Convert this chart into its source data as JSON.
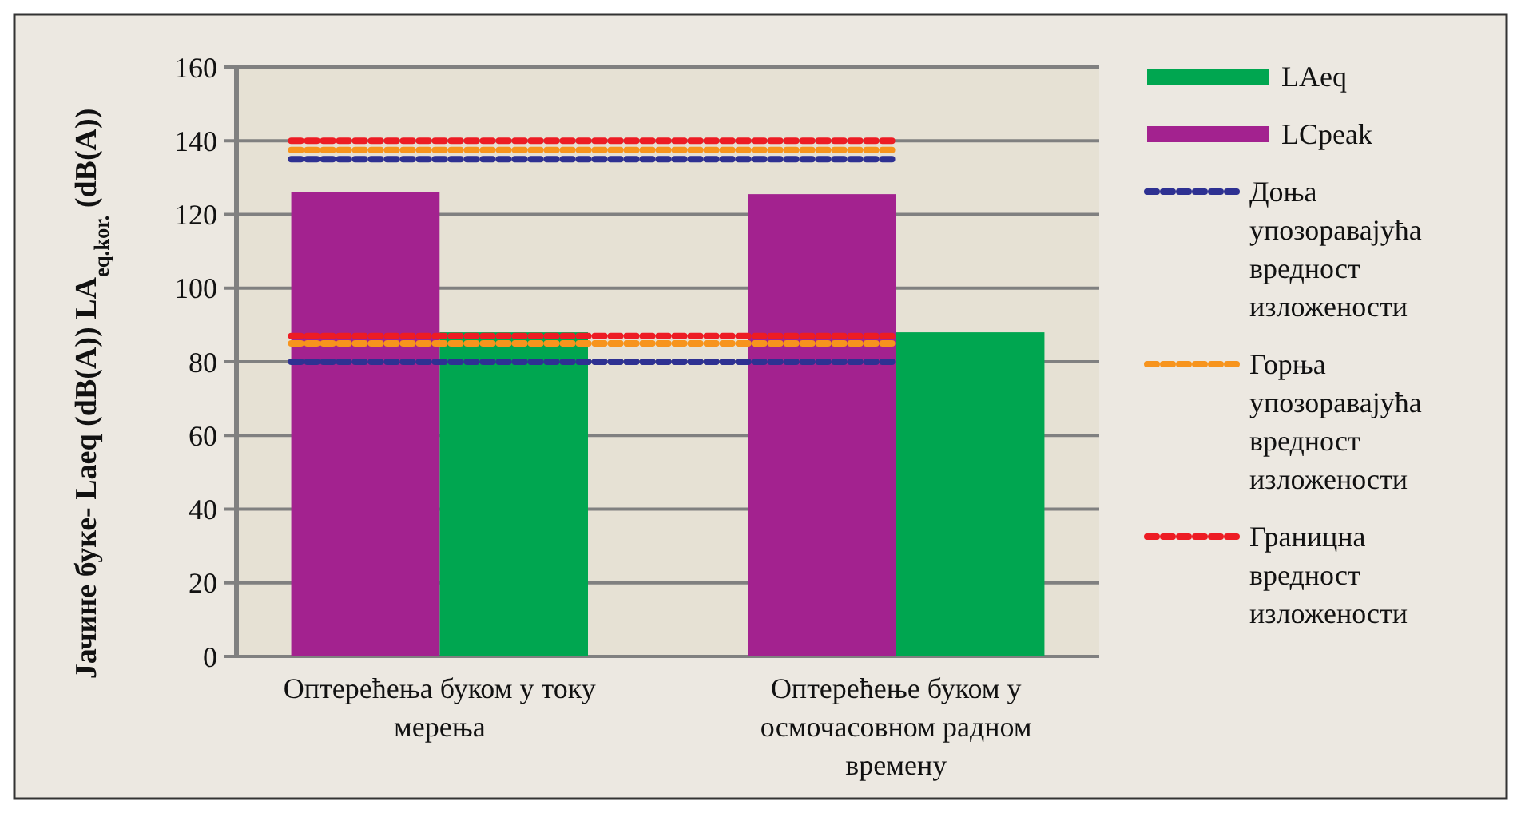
{
  "chart_data": {
    "type": "bar",
    "ylabel": "Јачине буке- Laeq (dB(A)) LA$_{eq.kor.}$ (dB(A))",
    "categories": [
      "Оптерећења буком у току мерења",
      "Оптерећење буком у осмочасовном радном времену"
    ],
    "series": [
      {
        "name": "LAeq",
        "color": "#00a650",
        "values": [
          88,
          88
        ]
      },
      {
        "name": "LCpeak",
        "color": "#a3228f",
        "values": [
          126,
          125.5
        ]
      }
    ],
    "ref_lines": [
      {
        "axis": "y",
        "value": 80,
        "label": "Доња упозоравајућа вредност изложености",
        "color": "#2e3192",
        "line_style": "dashed"
      },
      {
        "axis": "y",
        "value": 135,
        "color": "#2e3192",
        "line_style": "dashed"
      },
      {
        "axis": "y",
        "value": 85,
        "label": "Горња упозоравајућа вредност изложености",
        "color": "#f7941d",
        "line_style": "dashed"
      },
      {
        "axis": "y",
        "value": 137.5,
        "color": "#f7941d",
        "line_style": "dashed"
      },
      {
        "axis": "y",
        "value": 87,
        "label": "Границна вредност изложености",
        "color": "#ed1c24",
        "line_style": "dashed"
      },
      {
        "axis": "y",
        "value": 140,
        "color": "#ed1c24",
        "line_style": "dashed"
      }
    ],
    "ylim": [
      0,
      160
    ],
    "yticks": [
      0,
      20,
      40,
      60,
      80,
      100,
      120,
      140,
      160
    ],
    "grid": "y",
    "legend": "right"
  }
}
